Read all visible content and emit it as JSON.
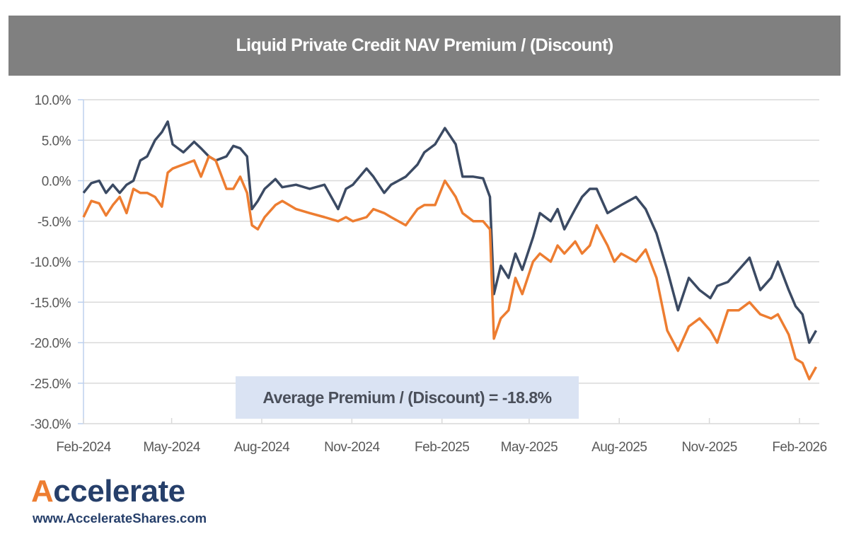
{
  "chart_data": {
    "type": "line",
    "title": "Liquid Private Credit NAV Premium / (Discount)",
    "xlabel": "",
    "ylabel": "",
    "ylim": [
      -30,
      10
    ],
    "xlim": [
      "2024-02-01",
      "2026-02-20"
    ],
    "grid": true,
    "legend": "none",
    "y_ticks": [
      "10.0%",
      "5.0%",
      "0.0%",
      "-5.0%",
      "-10.0%",
      "-15.0%",
      "-20.0%",
      "-25.0%",
      "-30.0%"
    ],
    "y_tick_values": [
      10,
      5,
      0,
      -5,
      -10,
      -15,
      -20,
      -25,
      -30
    ],
    "x_ticks": [
      "Feb-2024",
      "May-2024",
      "Aug-2024",
      "Nov-2024",
      "Feb-2025",
      "May-2025",
      "Aug-2025",
      "Nov-2025",
      "Feb-2026"
    ],
    "x_tick_dates": [
      "2024-02-01",
      "2024-05-01",
      "2024-08-01",
      "2024-11-01",
      "2025-02-01",
      "2025-05-01",
      "2025-08-01",
      "2025-11-01",
      "2026-02-01"
    ],
    "annotation": "Average Premium / (Discount) = -18.8%",
    "x": [
      "2024-02-01",
      "2024-02-09",
      "2024-02-17",
      "2024-02-24",
      "2024-03-02",
      "2024-03-09",
      "2024-03-16",
      "2024-03-23",
      "2024-03-30",
      "2024-04-06",
      "2024-04-14",
      "2024-04-21",
      "2024-04-27",
      "2024-05-02",
      "2024-05-13",
      "2024-05-24",
      "2024-05-31",
      "2024-06-08",
      "2024-06-15",
      "2024-06-26",
      "2024-07-03",
      "2024-07-10",
      "2024-07-17",
      "2024-07-22",
      "2024-07-28",
      "2024-08-04",
      "2024-08-15",
      "2024-08-22",
      "2024-09-05",
      "2024-09-19",
      "2024-10-04",
      "2024-10-18",
      "2024-10-26",
      "2024-11-02",
      "2024-11-16",
      "2024-11-23",
      "2024-12-04",
      "2024-12-11",
      "2024-12-26",
      "2025-01-07",
      "2025-01-14",
      "2025-01-25",
      "2025-02-04",
      "2025-02-15",
      "2025-02-22",
      "2025-03-05",
      "2025-03-15",
      "2025-03-22",
      "2025-03-26",
      "2025-04-02",
      "2025-04-10",
      "2025-04-17",
      "2025-04-24",
      "2025-05-05",
      "2025-05-12",
      "2025-05-23",
      "2025-05-30",
      "2025-06-06",
      "2025-06-17",
      "2025-06-24",
      "2025-07-02",
      "2025-07-09",
      "2025-07-20",
      "2025-07-27",
      "2025-08-03",
      "2025-08-18",
      "2025-08-28",
      "2025-09-08",
      "2025-09-19",
      "2025-09-30",
      "2025-10-11",
      "2025-10-22",
      "2025-11-02",
      "2025-11-09",
      "2025-11-20",
      "2025-12-01",
      "2025-12-12",
      "2025-12-23",
      "2026-01-03",
      "2026-01-10",
      "2026-01-21",
      "2026-01-28",
      "2026-02-04",
      "2026-02-11",
      "2026-02-18"
    ],
    "series": [
      {
        "color": "#3b4a63",
        "values": [
          -1.5,
          -0.3,
          0,
          -1.5,
          -0.5,
          -1.5,
          -0.5,
          0,
          2.5,
          3,
          5,
          6,
          7.3,
          4.5,
          3.5,
          4.8,
          4,
          3,
          2.5,
          3,
          4.3,
          4,
          3,
          -3.5,
          -2.5,
          -1,
          0.2,
          -0.8,
          -0.5,
          -1,
          -0.5,
          -3.5,
          -1,
          -0.5,
          1.5,
          0.5,
          -1.5,
          -0.5,
          0.5,
          2,
          3.5,
          4.5,
          6.5,
          4.5,
          0.5,
          0.5,
          0.3,
          -2,
          -14,
          -10.5,
          -12,
          -9,
          -11,
          -7,
          -4,
          -5,
          -3.5,
          -6,
          -3.5,
          -2,
          -1,
          -1,
          -4,
          -3.5,
          -3,
          -2,
          -3.5,
          -6.5,
          -11,
          -16,
          -12,
          -13.5,
          -14.5,
          -13,
          -12.5,
          -11,
          -9.5,
          -13.5,
          -12,
          -10,
          -13.5,
          -15.5,
          -16.5,
          -20,
          -18.5
        ]
      },
      {
        "color": "#ed7d31",
        "values": [
          -4.5,
          -2.5,
          -2.8,
          -4.3,
          -3,
          -2,
          -4,
          -1,
          -1.5,
          -1.5,
          -2,
          -3.2,
          1,
          1.5,
          2,
          2.5,
          0.5,
          3,
          2.5,
          -1,
          -1,
          0.5,
          -1.5,
          -5.5,
          -6,
          -4.5,
          -3,
          -2.5,
          -3.5,
          -4,
          -4.5,
          -5,
          -4.5,
          -5,
          -4.5,
          -3.5,
          -4,
          -4.5,
          -5.5,
          -3.5,
          -3,
          -3,
          0,
          -2,
          -4,
          -5,
          -5,
          -6,
          -19.5,
          -17,
          -16,
          -12,
          -14,
          -10,
          -9,
          -10,
          -8,
          -9,
          -7.5,
          -9,
          -8,
          -5.5,
          -8,
          -10,
          -9,
          -10,
          -8.5,
          -12,
          -18.5,
          -21,
          -18,
          -17,
          -18.5,
          -20,
          -16,
          -16,
          -15,
          -16.5,
          -17,
          -16.5,
          -19,
          -22,
          -22.5,
          -24.5,
          -23
        ]
      }
    ]
  },
  "logo": {
    "name": "Accelerate",
    "url": "www.AccelerateShares.com",
    "brand_color": "#263f6a",
    "accent_color": "#ed7d31"
  }
}
